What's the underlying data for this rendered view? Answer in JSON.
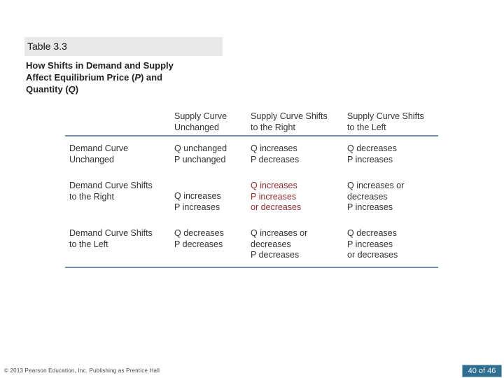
{
  "table_label": "Table 3.3",
  "caption": {
    "line1": "How Shifts in Demand and Supply",
    "line2_pre": "Affect Equilibrium Price (",
    "line2_p": "P",
    "line2_post": ") and",
    "line3_pre": "Quantity (",
    "line3_q": "Q",
    "line3_post": ")"
  },
  "columns": [
    {
      "line1": "Supply Curve",
      "line2": "Unchanged"
    },
    {
      "line1": "Supply Curve Shifts",
      "line2": "to the Right"
    },
    {
      "line1": "Supply Curve Shifts",
      "line2": "to the Left"
    }
  ],
  "rows": [
    {
      "header": {
        "line1": "Demand Curve",
        "line2": "Unchanged"
      },
      "cells": [
        {
          "line1": "Q unchanged",
          "line2": "P unchanged",
          "line3": ""
        },
        {
          "line1": "Q increases",
          "line2": "P decreases",
          "line3": ""
        },
        {
          "line1": "Q decreases",
          "line2": "P increases",
          "line3": ""
        }
      ]
    },
    {
      "header": {
        "line1": "Demand Curve Shifts",
        "line2": "to the Right"
      },
      "cells": [
        {
          "line1": "Q increases",
          "line2": "P increases",
          "line3": ""
        },
        {
          "line1": "Q increases",
          "line2": "P increases",
          "line3": "or decreases"
        },
        {
          "line1": "Q increases or",
          "line2": "decreases",
          "line3": "P increases"
        }
      ]
    },
    {
      "header": {
        "line1": "Demand Curve Shifts",
        "line2": "to the Left"
      },
      "cells": [
        {
          "line1": "Q decreases",
          "line2": "P decreases",
          "line3": ""
        },
        {
          "line1": "Q increases or",
          "line2": "decreases",
          "line3": "P decreases"
        },
        {
          "line1": "Q decreases",
          "line2": "P increases",
          "line3": "or decreases"
        }
      ]
    }
  ],
  "footer": "© 2013 Pearson Education, Inc. Publishing as Prentice Hall",
  "pager": "40 of 46",
  "colors": {
    "rule": "#6f8fb2",
    "pager_bg": "#2f6f8f",
    "label_bg": "#e9e9e9"
  }
}
